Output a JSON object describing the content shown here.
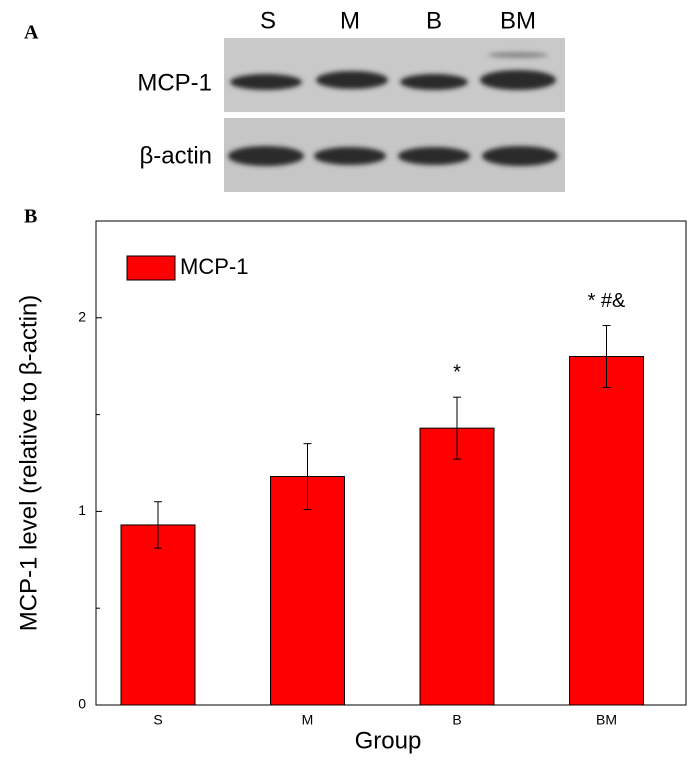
{
  "panel_a": {
    "label": "A",
    "lanes": [
      "S",
      "M",
      "B",
      "BM"
    ],
    "rows": [
      "MCP-1",
      "β-actin"
    ]
  },
  "chart_data": {
    "type": "bar",
    "panel_label": "B",
    "xlabel": "Group",
    "ylabel": "MCP-1 level (relative to β-actin)",
    "categories": [
      "S",
      "M",
      "B",
      "BM"
    ],
    "series": [
      {
        "name": "MCP-1",
        "color": "#ff0000",
        "values": [
          0.93,
          1.18,
          1.43,
          1.8
        ],
        "errors": [
          0.12,
          0.17,
          0.16,
          0.16
        ]
      }
    ],
    "annotations": [
      null,
      null,
      "*",
      "* #&"
    ],
    "ylim": [
      0,
      2.5
    ],
    "yticks": [
      0,
      1,
      2
    ],
    "minor_yticks": [
      0.5,
      1.5
    ],
    "legend": "upper left"
  }
}
